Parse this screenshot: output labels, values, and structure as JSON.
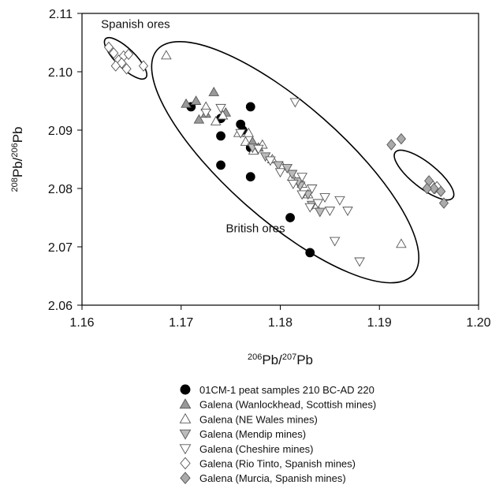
{
  "chart_data": {
    "type": "scatter",
    "xlim": [
      1.16,
      1.2
    ],
    "ylim": [
      2.06,
      2.11
    ],
    "x_ticks": [
      1.16,
      1.17,
      1.18,
      1.19,
      1.2
    ],
    "y_ticks": [
      2.06,
      2.07,
      2.08,
      2.09,
      2.1,
      2.11
    ],
    "x_tick_labels": [
      "1.16",
      "1.17",
      "1.18",
      "1.19",
      "1.20"
    ],
    "y_tick_labels": [
      "2.06",
      "2.07",
      "2.08",
      "2.09",
      "2.10",
      "2.11"
    ],
    "xlabel": {
      "sup": "206",
      "base1": "Pb/",
      "sup2": "207",
      "base2": "Pb"
    },
    "ylabel": {
      "sup": "208",
      "base1": "Pb/",
      "sup2": "206",
      "base2": "Pb"
    },
    "grid": false,
    "legend_position": "bottom",
    "annotations": [
      {
        "text": "Spanish ores",
        "x": 1.1654,
        "y": 2.1075
      },
      {
        "text": "British ores",
        "x": 1.1775,
        "y": 2.0725
      }
    ],
    "ellipses": [
      {
        "name": "Spanish ores",
        "cx": 1.1644,
        "cy": 2.1023,
        "rx": 0.0028,
        "ry": 0.0048,
        "angle": -0.8
      },
      {
        "name": "British ores",
        "cx": 1.1805,
        "cy": 2.0845,
        "rx": 0.0149,
        "ry": 0.0292,
        "angle": -0.85
      },
      {
        "name": "Rio Tinto / Murcia",
        "cx": 1.1945,
        "cy": 2.0823,
        "rx": 0.0037,
        "ry": 0.0062,
        "angle": -0.9
      }
    ],
    "series": [
      {
        "name": "01CM-1 peat samples 210 BC-AD 220",
        "marker": "circle",
        "fill": "#000000",
        "x": [
          1.171,
          1.174,
          1.174,
          1.174,
          1.176,
          1.1762,
          1.177,
          1.177,
          1.177,
          1.181,
          1.183
        ],
        "y": [
          2.094,
          2.092,
          2.089,
          2.084,
          2.091,
          2.09,
          2.094,
          2.087,
          2.082,
          2.075,
          2.069
        ]
      },
      {
        "name": "Galena (Wanlockhead, Scottish mines)",
        "marker": "triangle-up",
        "fill": "#999999",
        "x": [
          1.1705,
          1.1718,
          1.1725,
          1.1733,
          1.1745,
          1.1772,
          1.1778,
          1.1715
        ],
        "y": [
          2.0945,
          2.0918,
          2.0928,
          2.0965,
          2.093,
          2.088,
          2.087,
          2.095
        ]
      },
      {
        "name": "Galena (NE Wales mines)",
        "marker": "triangle-up",
        "fill": "#ffffff",
        "x": [
          1.1685,
          1.1725,
          1.1735,
          1.1742,
          1.1758,
          1.1765,
          1.1768,
          1.1773,
          1.1782,
          1.1792,
          1.1802,
          1.1812,
          1.1822,
          1.1828,
          1.1835,
          1.1922
        ],
        "y": [
          2.1028,
          2.094,
          2.0915,
          2.0925,
          2.0895,
          2.088,
          2.0895,
          2.0865,
          2.0875,
          2.085,
          2.0838,
          2.082,
          2.0808,
          2.079,
          2.0772,
          2.0705
        ]
      },
      {
        "name": "Galena (Mendip mines)",
        "marker": "triangle-down",
        "fill": "#bbbbbb",
        "x": [
          1.1772,
          1.1785,
          1.1798,
          1.1812,
          1.182,
          1.1828,
          1.1832,
          1.184,
          1.1807,
          1.1818
        ],
        "y": [
          2.087,
          2.0855,
          2.084,
          2.0825,
          2.0805,
          2.079,
          2.0772,
          2.076,
          2.0835,
          2.0812
        ]
      },
      {
        "name": "Galena (Cheshire mines)",
        "marker": "triangle-down",
        "fill": "#ffffff",
        "x": [
          1.1725,
          1.174,
          1.176,
          1.1778,
          1.179,
          1.18,
          1.1815,
          1.1822,
          1.1832,
          1.1838,
          1.1845,
          1.185,
          1.1855,
          1.186,
          1.1868,
          1.188,
          1.1813,
          1.1822,
          1.183
        ],
        "y": [
          2.093,
          2.0938,
          2.0895,
          2.0868,
          2.0848,
          2.0828,
          2.0948,
          2.082,
          2.08,
          2.0775,
          2.0785,
          2.0762,
          2.071,
          2.078,
          2.0762,
          2.0675,
          2.0808,
          2.079,
          2.0768
        ]
      },
      {
        "name": "Galena (Rio Tinto, Spanish mines)",
        "marker": "diamond",
        "fill": "#ffffff",
        "x": [
          1.1627,
          1.1632,
          1.1637,
          1.1642,
          1.1647,
          1.164,
          1.1634,
          1.1645,
          1.1662,
          1.1952,
          1.1956,
          1.1958
        ],
        "y": [
          2.1042,
          2.1032,
          2.102,
          2.1027,
          2.103,
          2.1015,
          2.101,
          2.1005,
          2.101,
          2.0808,
          2.08,
          2.0803
        ]
      },
      {
        "name": "Galena (Murcia, Spanish mines)",
        "marker": "diamond",
        "fill": "#aaaaaa",
        "x": [
          1.1912,
          1.1922,
          1.195,
          1.1955,
          1.1962,
          1.1965,
          1.1948
        ],
        "y": [
          2.0875,
          2.0885,
          2.0813,
          2.08,
          2.0795,
          2.0775,
          2.08
        ]
      }
    ]
  }
}
